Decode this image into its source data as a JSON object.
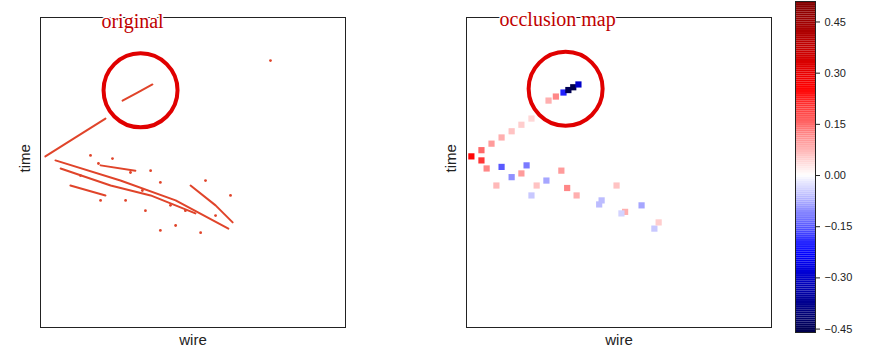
{
  "chart_data": [
    {
      "type": "scatter",
      "annotation": {
        "text": "original",
        "x": 32.8,
        "y": 76.5
      },
      "xlabel": "wire",
      "ylabel": "time",
      "xlim": [
        0,
        100
      ],
      "ylim": [
        0,
        100
      ],
      "tick_labels": false,
      "color": "#e0442a",
      "tracks": [
        {
          "x": [
            26.9,
            31.8,
            36.7
          ],
          "y": [
            73.2,
            75.8,
            78.4
          ]
        },
        {
          "x": [
            1.6,
            11.5,
            21.3
          ],
          "y": [
            55.2,
            61.3,
            67.4
          ]
        },
        {
          "x": [
            4.9,
            26.2,
            44.3,
            61.6
          ],
          "y": [
            53.9,
            47.4,
            41.0,
            31.9
          ]
        },
        {
          "x": [
            6.6,
            23.0,
            36.1,
            50.8
          ],
          "y": [
            51.3,
            45.8,
            42.6,
            36.8
          ]
        },
        {
          "x": [
            49.2,
            57.4,
            63.0
          ],
          "y": [
            45.8,
            39.4,
            33.9
          ]
        },
        {
          "x": [
            19.7,
            31.1
          ],
          "y": [
            52.3,
            50.6
          ]
        },
        {
          "x": [
            9.8,
            21.3
          ],
          "y": [
            45.8,
            42.6
          ]
        }
      ],
      "hits": {
        "x": [
          16.4,
          19.0,
          23.6,
          29.5,
          33.4,
          39.3,
          42.6,
          47.5,
          52.5,
          57.4,
          34.4,
          27.9,
          19.7,
          39.3,
          62.3,
          75.4,
          54.1,
          36.1,
          13.1,
          44.3
        ],
        "y": [
          55.5,
          52.9,
          54.5,
          50.0,
          44.2,
          46.8,
          39.4,
          37.7,
          30.6,
          36.1,
          37.7,
          41.0,
          41.0,
          31.3,
          42.6,
          86.1,
          47.4,
          50.6,
          49.0,
          32.9
        ]
      }
    },
    {
      "type": "heatmap",
      "annotation": {
        "text": "occlusion map",
        "x": 32.5,
        "y": 77.0
      },
      "xlabel": "wire",
      "ylabel": "time",
      "xlim": [
        0,
        100
      ],
      "ylim": [
        0,
        100
      ],
      "tick_labels": false,
      "cells": {
        "x": [
          26.9,
          29.3,
          31.8,
          33.4,
          35.0,
          36.7,
          1.6,
          4.9,
          8.2,
          11.5,
          14.8,
          18.0,
          21.3,
          4.9,
          11.5,
          18.0,
          26.2,
          33.0,
          44.3,
          52.0,
          61.6,
          6.6,
          14.8,
          23.0,
          36.1,
          43.5,
          50.8,
          49.2,
          57.4,
          63.0,
          19.7,
          31.1,
          9.8,
          21.3
        ],
        "y": [
          73.2,
          74.5,
          75.8,
          76.6,
          77.5,
          78.4,
          55.2,
          57.2,
          59.3,
          61.3,
          63.3,
          65.4,
          67.4,
          53.9,
          51.8,
          49.7,
          47.4,
          45.0,
          41.0,
          37.3,
          31.9,
          51.3,
          48.5,
          45.8,
          42.6,
          39.7,
          36.8,
          45.8,
          39.4,
          33.9,
          52.3,
          50.6,
          45.8,
          42.6
        ],
        "values": [
          0.08,
          0.12,
          -0.2,
          -0.45,
          -0.5,
          -0.3,
          0.25,
          0.15,
          0.1,
          0.08,
          0.06,
          0.05,
          0.04,
          0.2,
          -0.15,
          0.1,
          -0.08,
          0.12,
          -0.06,
          0.08,
          -0.05,
          0.12,
          -0.1,
          0.06,
          0.08,
          -0.06,
          -0.04,
          0.06,
          -0.08,
          0.05,
          -0.12,
          0.1,
          0.07,
          -0.05
        ]
      },
      "colorbar": {
        "range": [
          -0.46,
          0.51
        ],
        "ticks": [
          {
            "value": 0.45,
            "label": "0.45"
          },
          {
            "value": 0.3,
            "label": "0.30"
          },
          {
            "value": 0.15,
            "label": "0.15"
          },
          {
            "value": 0,
            "label": "0.00"
          },
          {
            "value": -0.15,
            "label": "−0.15"
          },
          {
            "value": -0.3,
            "label": "−0.30"
          },
          {
            "value": -0.45,
            "label": "−0.45"
          }
        ],
        "colors": [
          "#00004c",
          "#0000ff",
          "#ffffff",
          "#ff0000",
          "#800000"
        ]
      }
    }
  ]
}
